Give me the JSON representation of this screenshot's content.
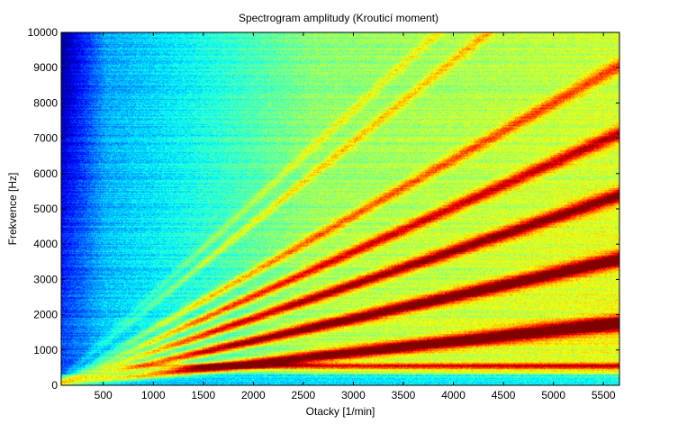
{
  "chart_data": {
    "type": "heatmap",
    "title": "Spectrogram amplitudy (Krouticí moment)",
    "xlabel": "Otacky [1/min]",
    "ylabel": "Frekvence [Hz]",
    "xlim": [
      80,
      5660
    ],
    "ylim": [
      0,
      10000
    ],
    "xticks": [
      500,
      1000,
      1500,
      2000,
      2500,
      3000,
      3500,
      4000,
      4500,
      5000,
      5500
    ],
    "yticks": [
      0,
      1000,
      2000,
      3000,
      4000,
      5000,
      6000,
      7000,
      8000,
      9000,
      10000
    ],
    "xtick_labels": [
      "500",
      "1000",
      "1500",
      "2000",
      "2500",
      "3000",
      "3500",
      "4000",
      "4500",
      "5000",
      "5500"
    ],
    "ytick_labels": [
      "0",
      "1000",
      "2000",
      "3000",
      "4000",
      "5000",
      "6000",
      "7000",
      "8000",
      "9000",
      "10000"
    ],
    "colormap": "jet",
    "grid": false,
    "order_lines": [
      {
        "slope_hz_per_rpm": 0.31,
        "intensity": 0.92
      },
      {
        "slope_hz_per_rpm": 0.63,
        "intensity": 0.88
      },
      {
        "slope_hz_per_rpm": 0.95,
        "intensity": 0.8
      },
      {
        "slope_hz_per_rpm": 1.26,
        "intensity": 0.72
      },
      {
        "slope_hz_per_rpm": 1.6,
        "intensity": 0.6
      },
      {
        "slope_hz_per_rpm": 2.3,
        "intensity": 0.5
      },
      {
        "slope_hz_per_rpm": 2.6,
        "intensity": 0.45
      }
    ],
    "constant_bands": [
      {
        "frequency_hz": 550,
        "intensity": 0.75
      },
      {
        "frequency_hz": 2500,
        "intensity": 0.4
      }
    ]
  }
}
